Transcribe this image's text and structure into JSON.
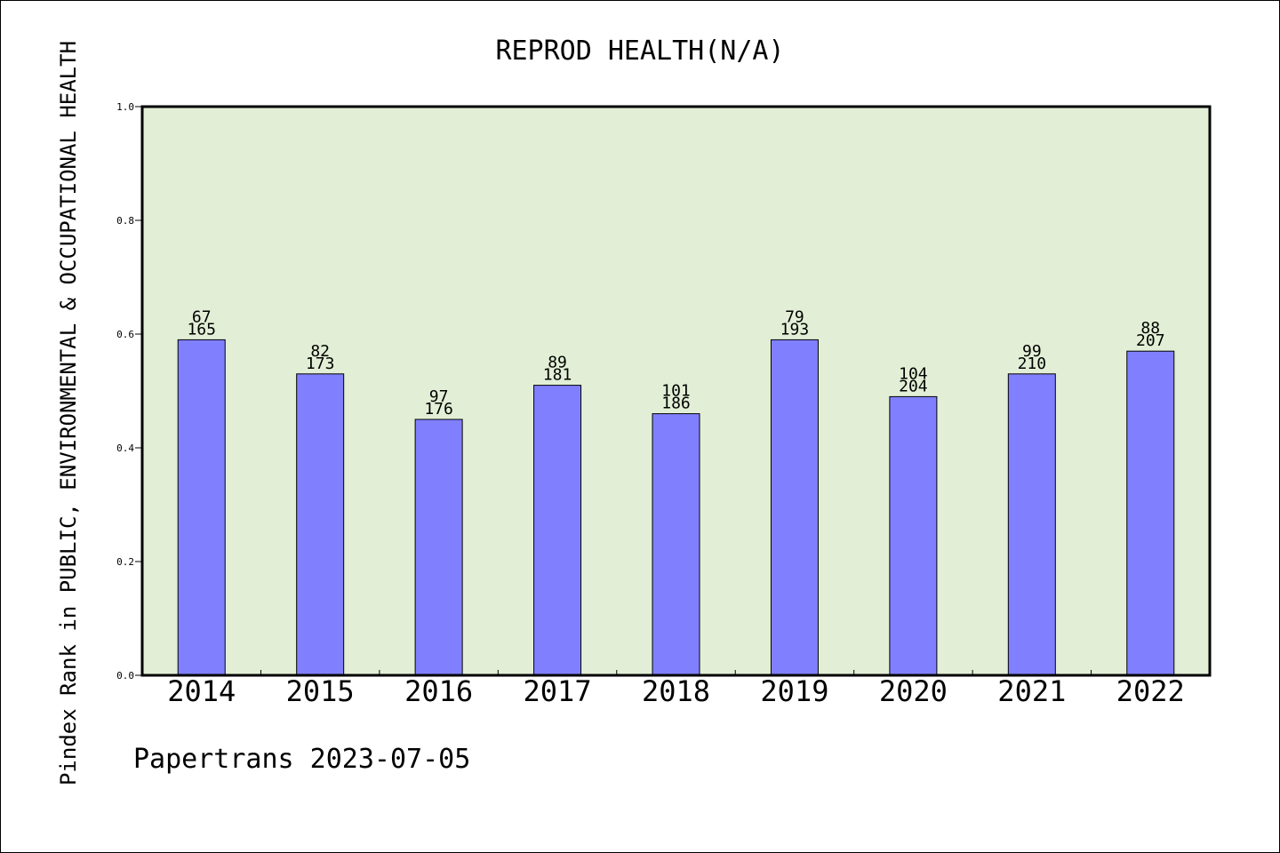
{
  "chart_data": {
    "type": "bar",
    "title": "REPROD HEALTH(N/A)",
    "xlabel": "",
    "ylabel": "Pindex Rank in PUBLIC, ENVIRONMENTAL & OCCUPATIONAL HEALTH",
    "ylim": [
      0,
      1.0
    ],
    "yticks": [
      "0.0",
      "0.2",
      "0.4",
      "0.6",
      "0.8",
      "1.0"
    ],
    "grid": false,
    "categories": [
      "2014",
      "2015",
      "2016",
      "2017",
      "2018",
      "2019",
      "2020",
      "2021",
      "2022"
    ],
    "values": [
      0.59,
      0.53,
      0.45,
      0.51,
      0.46,
      0.59,
      0.49,
      0.53,
      0.57
    ],
    "labels_top": [
      "67",
      "82",
      "97",
      "89",
      "101",
      "79",
      "104",
      "99",
      "88"
    ],
    "labels_bottom": [
      "165",
      "173",
      "176",
      "181",
      "186",
      "193",
      "204",
      "210",
      "207"
    ],
    "colors": {
      "plot_background": "#e2efd6",
      "bar_fill": "#8080ff",
      "bar_stroke": "#000000"
    }
  },
  "footer": "Papertrans 2023-07-05"
}
